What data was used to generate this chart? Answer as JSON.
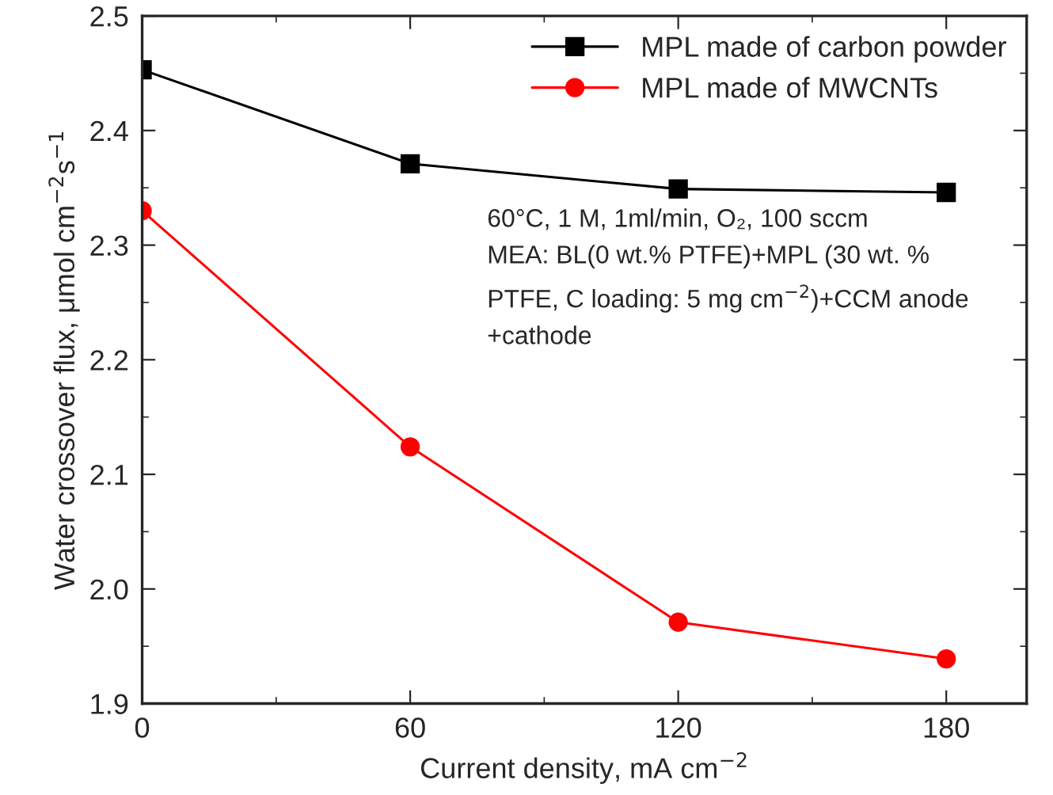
{
  "chart_data": {
    "type": "line",
    "xlabel": "Current density, mA cm$^{−2}$",
    "ylabel": "Water crossover flux, μmol cm$^{−2}$s$^{−1}$",
    "x": [
      0,
      60,
      120,
      180
    ],
    "series": [
      {
        "name": "MPL made of carbon powder",
        "color": "#000000",
        "marker": "square",
        "values": [
          2.453,
          2.371,
          2.349,
          2.346
        ]
      },
      {
        "name": "MPL made of MWCNTs",
        "color": "#ff0000",
        "marker": "circle",
        "values": [
          2.33,
          2.124,
          1.971,
          1.939
        ]
      }
    ],
    "xlim": [
      0,
      198
    ],
    "xticks": [
      0,
      60,
      120,
      180
    ],
    "ylim": [
      1.9,
      2.5
    ],
    "yticks": [
      1.9,
      {
        "value": 2,
        "label": "2.0"
      },
      2.1,
      2.2,
      2.3,
      2.4,
      2.5
    ],
    "annotations": [
      "60°C, 1 M, 1ml/min, O₂, 100 sccm\nMEA: BL(0 wt.% PTFE)+MPL (30 wt. %\nPTFE, C loading: 5 mg cm$^{−2}$)+CCM anode\n+cathode"
    ],
    "legend": "top right",
    "grid": false,
    "line_style": "solid"
  }
}
